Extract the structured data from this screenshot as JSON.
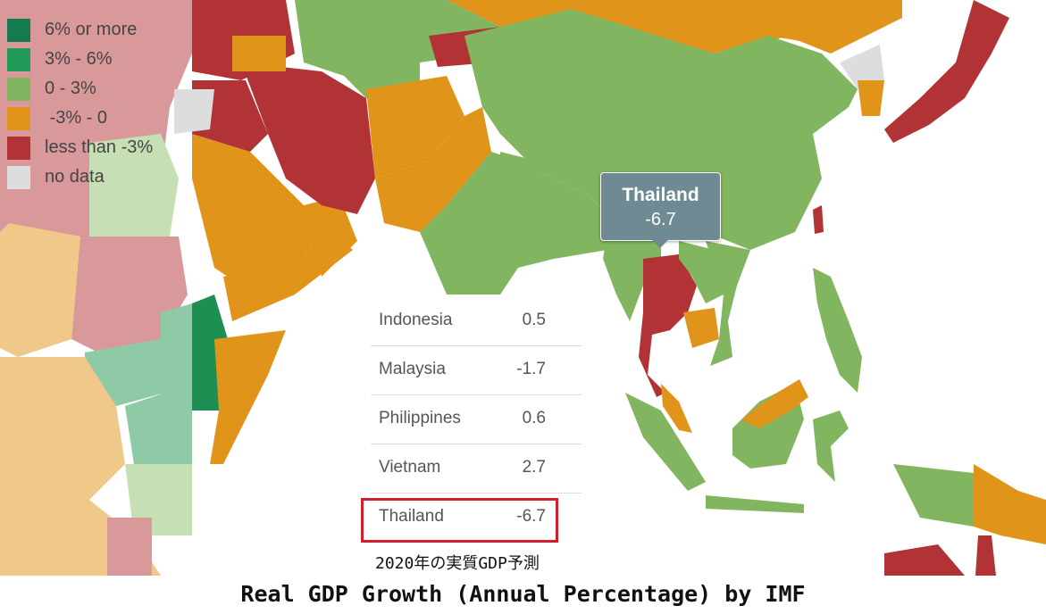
{
  "colors": {
    "six_or_more": "#147a50",
    "three_to_six": "#219a57",
    "zero_to_three": "#82b55f",
    "neg3_to_0": "#e0951a",
    "less_than_neg3": "#b13335",
    "no_data": "#dcdddf",
    "tooltip_bg": "#6e8a93",
    "highlight": "#d0202b"
  },
  "legend": [
    {
      "label": "6% or more",
      "color": "#147a50"
    },
    {
      "label": "3% - 6%",
      "color": "#219a57"
    },
    {
      "label": "0 - 3%",
      "color": "#82b55f"
    },
    {
      "label": " -3% - 0",
      "color": "#e0951a"
    },
    {
      "label": "less than -3%",
      "color": "#b13335"
    },
    {
      "label": "no data",
      "color": "#dcdddf"
    }
  ],
  "tooltip": {
    "country": "Thailand",
    "value": "-6.7"
  },
  "table": [
    {
      "country": "Indonesia",
      "value": "0.5"
    },
    {
      "country": "Malaysia",
      "value": "-1.7"
    },
    {
      "country": "Philippines",
      "value": "0.6"
    },
    {
      "country": "Vietnam",
      "value": "2.7"
    },
    {
      "country": "Thailand",
      "value": "-6.7",
      "highlighted": true
    }
  ],
  "sub_caption": "2020年の実質GDP予測",
  "caption": "Real GDP Growth (Annual Percentage) by IMF"
}
